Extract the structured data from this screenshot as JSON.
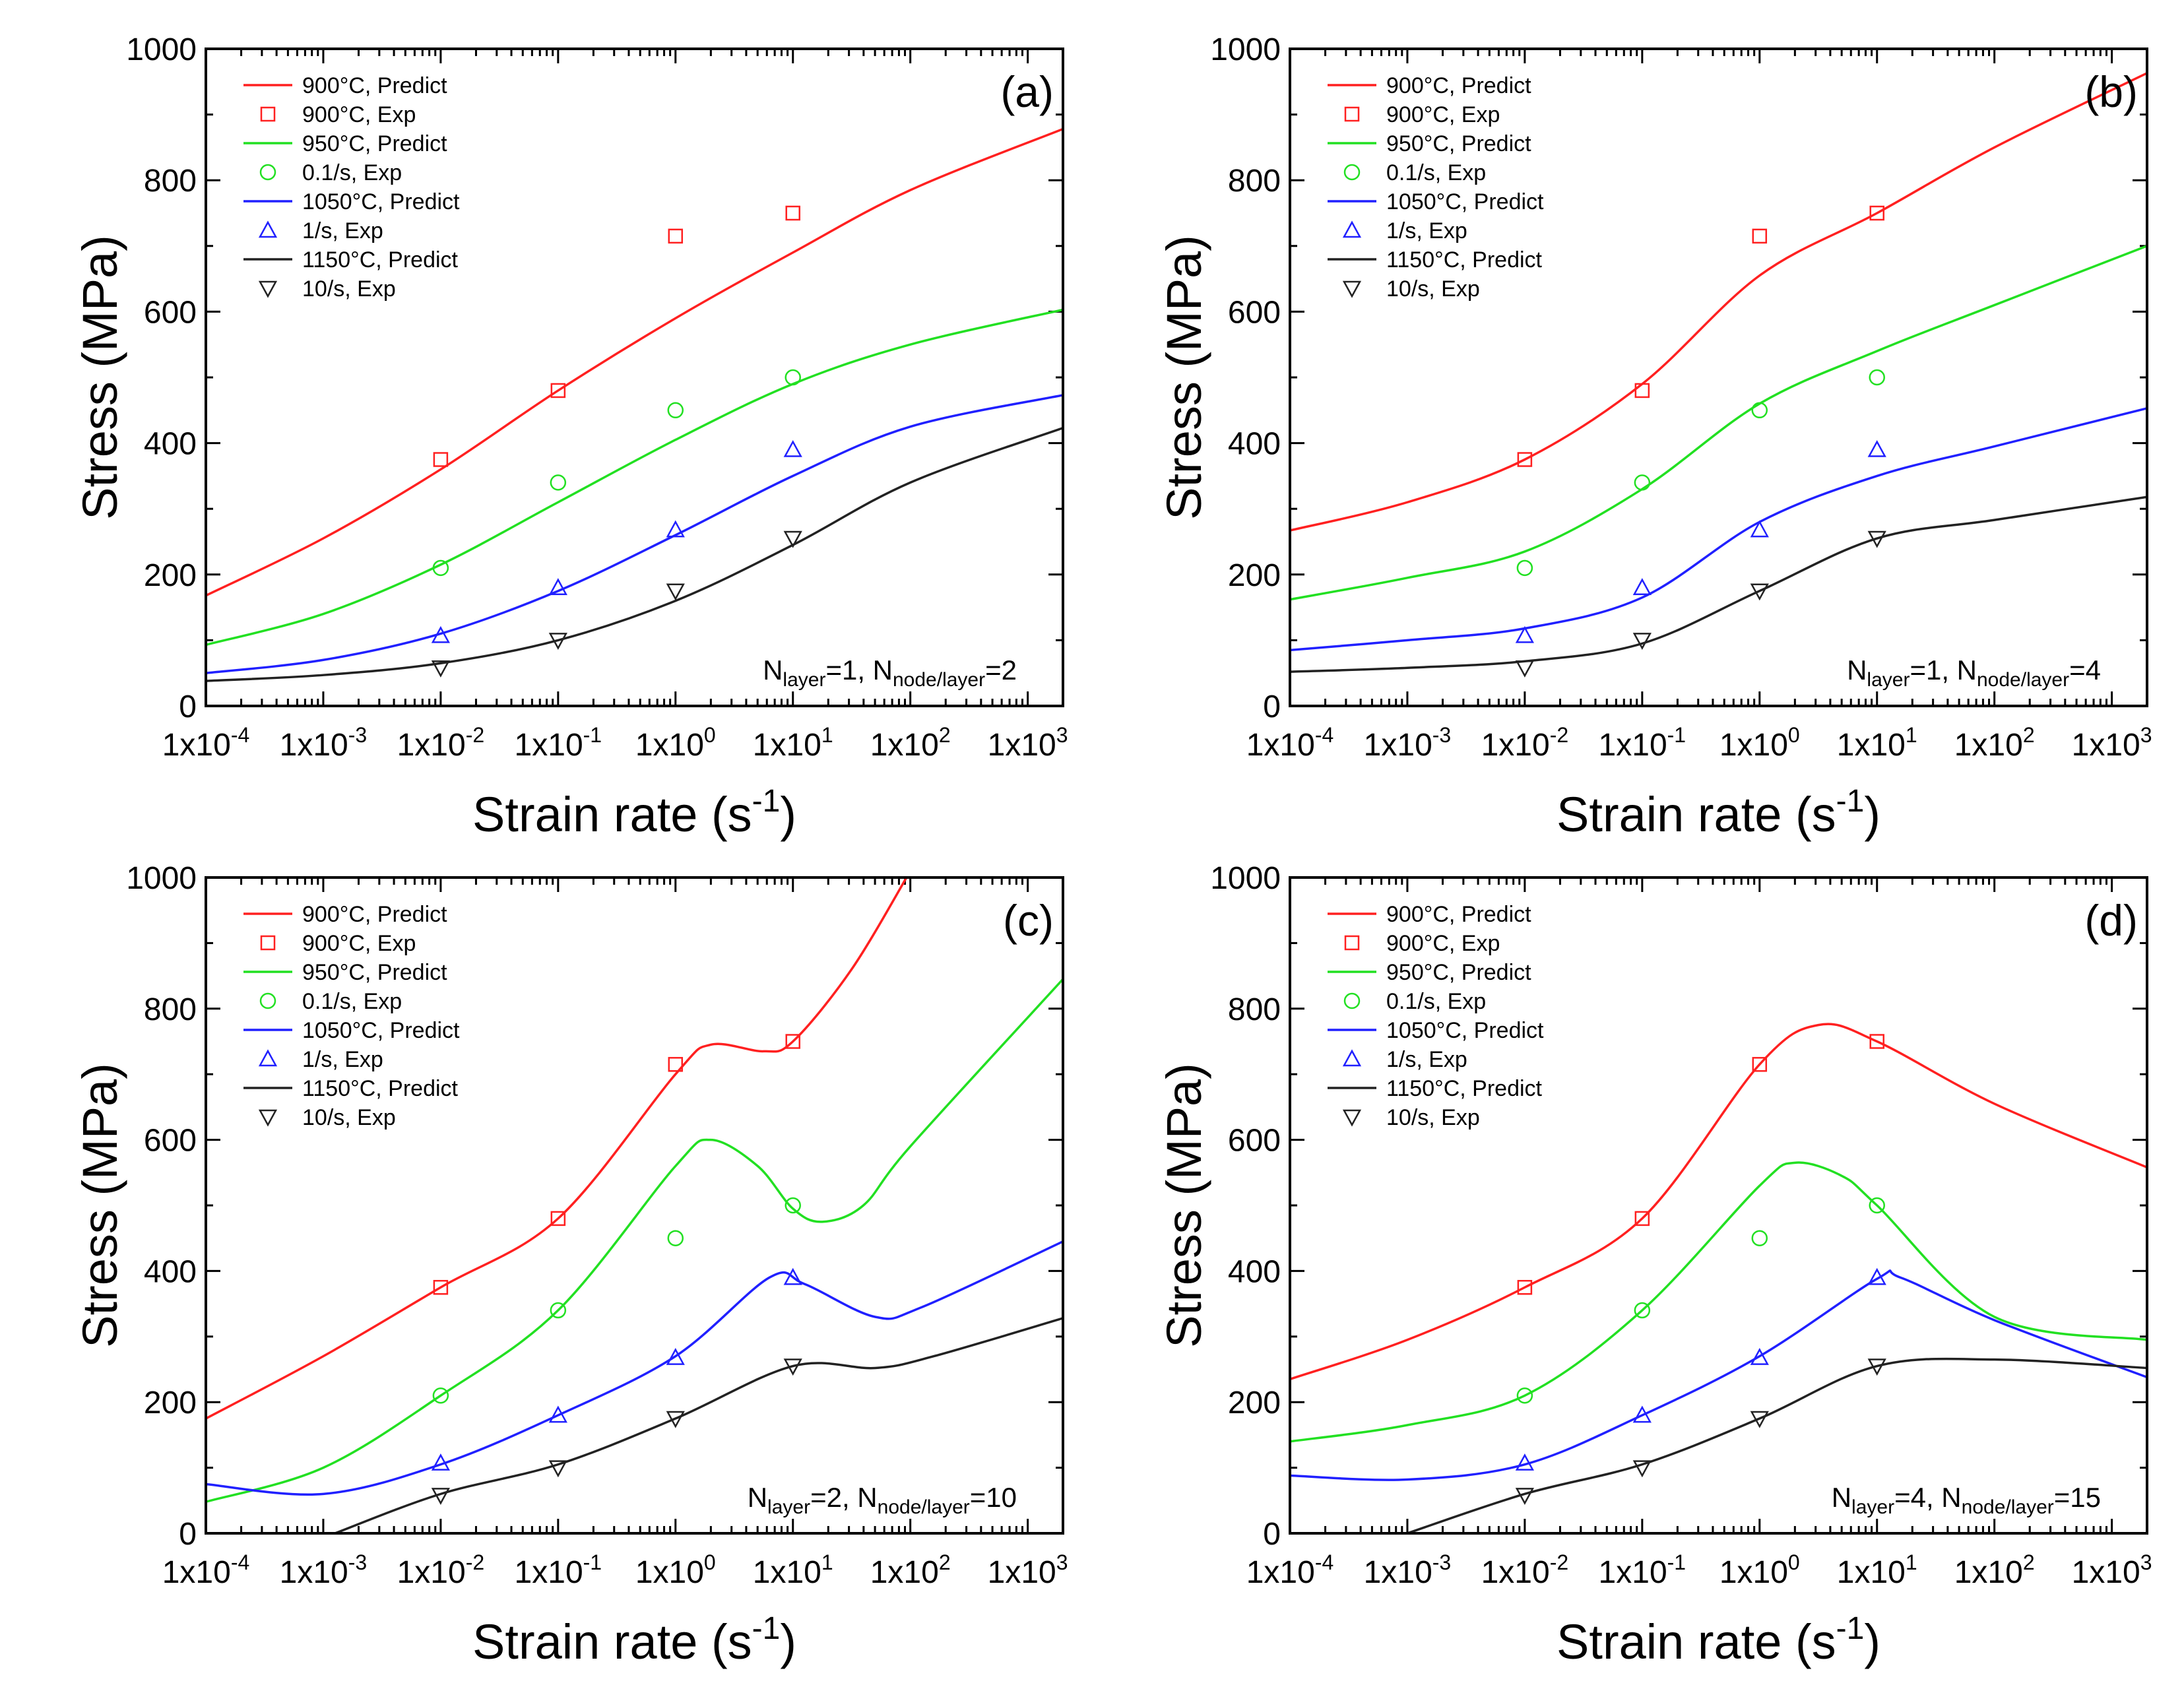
{
  "chart_data": [
    {
      "type": "line",
      "panel_label": "(a)",
      "annotation": {
        "parts": [
          [
            "N",
            ""
          ],
          [
            "layer",
            "sub"
          ],
          [
            "=1, N",
            ""
          ],
          [
            "node/layer",
            "sub"
          ],
          [
            "=2",
            ""
          ]
        ]
      },
      "xlabel": {
        "text": "Strain rate (s",
        "sup": "-1",
        "close": ")"
      },
      "ylabel": "Stress (MPa)",
      "xscale": "log",
      "xlim_log10": [
        -4,
        3.3
      ],
      "ylim": [
        0,
        1000
      ],
      "xticks": [
        {
          "base": "1x10",
          "exp": "-4"
        },
        {
          "base": "1x10",
          "exp": "-3"
        },
        {
          "base": "1x10",
          "exp": "-2"
        },
        {
          "base": "1x10",
          "exp": "-1"
        },
        {
          "base": "1x10",
          "exp": "0"
        },
        {
          "base": "1x10",
          "exp": "1"
        },
        {
          "base": "1x10",
          "exp": "2"
        },
        {
          "base": "1x10",
          "exp": "3"
        }
      ],
      "yticks": [
        "0",
        "200",
        "400",
        "600",
        "800",
        "1000"
      ],
      "legend_position": "top-left",
      "series_predict": [
        {
          "name": "900°C, Predict",
          "color": "#ff2020",
          "points": [
            [
              -4,
              168
            ],
            [
              -3,
              255
            ],
            [
              -2,
              360
            ],
            [
              -1,
              480
            ],
            [
              0,
              590
            ],
            [
              1,
              690
            ],
            [
              2,
              785
            ],
            [
              3.3,
              878
            ]
          ]
        },
        {
          "name": "950°C, Predict",
          "color": "#22e022",
          "points": [
            [
              -4,
              93
            ],
            [
              -3,
              140
            ],
            [
              -2,
              215
            ],
            [
              -1,
              310
            ],
            [
              0,
              405
            ],
            [
              1,
              490
            ],
            [
              2,
              550
            ],
            [
              3.3,
              603
            ]
          ]
        },
        {
          "name": "1050°C, Predict",
          "color": "#2020ff",
          "points": [
            [
              -4,
              50
            ],
            [
              -3,
              70
            ],
            [
              -2,
              110
            ],
            [
              -1,
              175
            ],
            [
              0,
              260
            ],
            [
              1,
              350
            ],
            [
              2,
              425
            ],
            [
              3.3,
              473
            ]
          ]
        },
        {
          "name": "1150°C, Predict",
          "color": "#222222",
          "points": [
            [
              -4,
              38
            ],
            [
              -3,
              47
            ],
            [
              -2,
              65
            ],
            [
              -1,
              100
            ],
            [
              0,
              160
            ],
            [
              1,
              245
            ],
            [
              2,
              340
            ],
            [
              3.3,
              423
            ]
          ]
        }
      ]
    },
    {
      "type": "line",
      "panel_label": "(b)",
      "annotation": {
        "parts": [
          [
            "N",
            ""
          ],
          [
            "layer",
            "sub"
          ],
          [
            "=1, N",
            ""
          ],
          [
            "node/layer",
            "sub"
          ],
          [
            "=4",
            ""
          ]
        ]
      },
      "xlabel": {
        "text": "Strain rate (s",
        "sup": "-1",
        "close": ")"
      },
      "ylabel": "Stress (MPa)",
      "xscale": "log",
      "xlim_log10": [
        -4,
        3.3
      ],
      "ylim": [
        0,
        1000
      ],
      "xticks": [
        {
          "base": "1x10",
          "exp": "-4"
        },
        {
          "base": "1x10",
          "exp": "-3"
        },
        {
          "base": "1x10",
          "exp": "-2"
        },
        {
          "base": "1x10",
          "exp": "-1"
        },
        {
          "base": "1x10",
          "exp": "0"
        },
        {
          "base": "1x10",
          "exp": "1"
        },
        {
          "base": "1x10",
          "exp": "2"
        },
        {
          "base": "1x10",
          "exp": "3"
        }
      ],
      "yticks": [
        "0",
        "200",
        "400",
        "600",
        "800",
        "1000"
      ],
      "legend_position": "top-left",
      "series_predict": [
        {
          "name": "900°C, Predict",
          "color": "#ff2020",
          "points": [
            [
              -4,
              267
            ],
            [
              -3,
              310
            ],
            [
              -2,
              375
            ],
            [
              -1,
              490
            ],
            [
              0,
              655
            ],
            [
              1,
              750
            ],
            [
              2,
              850
            ],
            [
              3.3,
              963
            ]
          ]
        },
        {
          "name": "950°C, Predict",
          "color": "#22e022",
          "points": [
            [
              -4,
              162
            ],
            [
              -3,
              195
            ],
            [
              -2,
              235
            ],
            [
              -1,
              330
            ],
            [
              0,
              460
            ],
            [
              1,
              540
            ],
            [
              2,
              610
            ],
            [
              3.3,
              700
            ]
          ]
        },
        {
          "name": "1050°C, Predict",
          "color": "#2020ff",
          "points": [
            [
              -4,
              85
            ],
            [
              -3,
              100
            ],
            [
              -2,
              118
            ],
            [
              -1,
              165
            ],
            [
              0,
              280
            ],
            [
              1,
              350
            ],
            [
              2,
              395
            ],
            [
              3.3,
              453
            ]
          ]
        },
        {
          "name": "1150°C, Predict",
          "color": "#222222",
          "points": [
            [
              -4,
              52
            ],
            [
              -3,
              58
            ],
            [
              -2,
              68
            ],
            [
              -1,
              95
            ],
            [
              0,
              175
            ],
            [
              1,
              255
            ],
            [
              2,
              283
            ],
            [
              3.3,
              318
            ]
          ]
        }
      ]
    },
    {
      "type": "line",
      "panel_label": "(c)",
      "annotation": {
        "parts": [
          [
            "N",
            ""
          ],
          [
            "layer",
            "sub"
          ],
          [
            "=2, N",
            ""
          ],
          [
            "node/layer",
            "sub"
          ],
          [
            "=10",
            ""
          ]
        ]
      },
      "xlabel": {
        "text": "Strain rate (s",
        "sup": "-1",
        "close": ")"
      },
      "ylabel": "Stress (MPa)",
      "xscale": "log",
      "xlim_log10": [
        -4,
        3.3
      ],
      "ylim": [
        0,
        1000
      ],
      "xticks": [
        {
          "base": "1x10",
          "exp": "-4"
        },
        {
          "base": "1x10",
          "exp": "-3"
        },
        {
          "base": "1x10",
          "exp": "-2"
        },
        {
          "base": "1x10",
          "exp": "-1"
        },
        {
          "base": "1x10",
          "exp": "0"
        },
        {
          "base": "1x10",
          "exp": "1"
        },
        {
          "base": "1x10",
          "exp": "2"
        },
        {
          "base": "1x10",
          "exp": "3"
        }
      ],
      "yticks": [
        "0",
        "200",
        "400",
        "600",
        "800",
        "1000"
      ],
      "legend_position": "top-left",
      "series_predict": [
        {
          "name": "900°C, Predict",
          "color": "#ff2020",
          "points": [
            [
              -4,
              175
            ],
            [
              -3,
              270
            ],
            [
              -2,
              375
            ],
            [
              -1,
              480
            ],
            [
              0,
              700
            ],
            [
              0.3,
              745
            ],
            [
              0.75,
              735
            ],
            [
              1,
              750
            ],
            [
              1.5,
              860
            ],
            [
              2,
              1010
            ]
          ]
        },
        {
          "name": "950°C, Predict",
          "color": "#22e022",
          "points": [
            [
              -4,
              48
            ],
            [
              -3,
              100
            ],
            [
              -2,
              210
            ],
            [
              -1,
              340
            ],
            [
              0,
              560
            ],
            [
              0.3,
              600
            ],
            [
              0.7,
              560
            ],
            [
              1,
              495
            ],
            [
              1.25,
              475
            ],
            [
              1.6,
              500
            ],
            [
              2,
              590
            ],
            [
              3.3,
              845
            ]
          ]
        },
        {
          "name": "1050°C, Predict",
          "color": "#2020ff",
          "points": [
            [
              -4,
              75
            ],
            [
              -3,
              60
            ],
            [
              -2,
              105
            ],
            [
              -1,
              180
            ],
            [
              0,
              270
            ],
            [
              0.8,
              390
            ],
            [
              1.1,
              380
            ],
            [
              1.7,
              330
            ],
            [
              2.1,
              345
            ],
            [
              3.3,
              445
            ]
          ]
        },
        {
          "name": "1150°C, Predict",
          "color": "#222222",
          "points": [
            [
              -2.9,
              0
            ],
            [
              -2,
              60
            ],
            [
              -1,
              105
            ],
            [
              0,
              175
            ],
            [
              1,
              255
            ],
            [
              1.7,
              252
            ],
            [
              2.2,
              270
            ],
            [
              3.3,
              328
            ]
          ]
        }
      ]
    },
    {
      "type": "line",
      "panel_label": "(d)",
      "annotation": {
        "parts": [
          [
            "N",
            ""
          ],
          [
            "layer",
            "sub"
          ],
          [
            "=4, N",
            ""
          ],
          [
            "node/layer",
            "sub"
          ],
          [
            "=15",
            ""
          ]
        ]
      },
      "xlabel": {
        "text": "Strain rate (s",
        "sup": "-1",
        "close": ")"
      },
      "ylabel": "Stress (MPa)",
      "xscale": "log",
      "xlim_log10": [
        -4,
        3.3
      ],
      "ylim": [
        0,
        1000
      ],
      "xticks": [
        {
          "base": "1x10",
          "exp": "-4"
        },
        {
          "base": "1x10",
          "exp": "-3"
        },
        {
          "base": "1x10",
          "exp": "-2"
        },
        {
          "base": "1x10",
          "exp": "-1"
        },
        {
          "base": "1x10",
          "exp": "0"
        },
        {
          "base": "1x10",
          "exp": "1"
        },
        {
          "base": "1x10",
          "exp": "2"
        },
        {
          "base": "1x10",
          "exp": "3"
        }
      ],
      "yticks": [
        "0",
        "200",
        "400",
        "600",
        "800",
        "1000"
      ],
      "legend_position": "top-left",
      "series_predict": [
        {
          "name": "900°C, Predict",
          "color": "#ff2020",
          "points": [
            [
              -4,
              235
            ],
            [
              -3,
              295
            ],
            [
              -2,
              375
            ],
            [
              -1,
              480
            ],
            [
              0,
              715
            ],
            [
              0.5,
              775
            ],
            [
              1,
              750
            ],
            [
              2,
              655
            ],
            [
              3.3,
              558
            ]
          ]
        },
        {
          "name": "950°C, Predict",
          "color": "#22e022",
          "points": [
            [
              -4,
              140
            ],
            [
              -3,
              165
            ],
            [
              -2,
              210
            ],
            [
              -1,
              340
            ],
            [
              0,
              530
            ],
            [
              0.3,
              565
            ],
            [
              0.7,
              545
            ],
            [
              1,
              500
            ],
            [
              2,
              330
            ],
            [
              3.3,
              295
            ]
          ]
        },
        {
          "name": "1050°C, Predict",
          "color": "#2020ff",
          "points": [
            [
              -4,
              88
            ],
            [
              -3,
              82
            ],
            [
              -2,
              105
            ],
            [
              -1,
              180
            ],
            [
              0,
              270
            ],
            [
              1,
              388
            ],
            [
              1.2,
              390
            ],
            [
              2,
              325
            ],
            [
              3.3,
              238
            ]
          ]
        },
        {
          "name": "1150°C, Predict",
          "color": "#222222",
          "points": [
            [
              -3.0,
              0
            ],
            [
              -2,
              60
            ],
            [
              -1,
              105
            ],
            [
              0,
              175
            ],
            [
              1,
              255
            ],
            [
              2,
              265
            ],
            [
              3.3,
              252
            ]
          ]
        }
      ]
    }
  ],
  "experimental": [
    {
      "name": "900°C, Exp",
      "marker": "square",
      "color": "#ff2020",
      "x_log10": [
        -2,
        -1,
        0,
        1
      ],
      "y": [
        375,
        480,
        715,
        750
      ]
    },
    {
      "name": "0.1/s, Exp",
      "marker": "circle",
      "color": "#22e022",
      "x_log10": [
        -2,
        -1,
        0,
        1
      ],
      "y": [
        210,
        340,
        450,
        500
      ]
    },
    {
      "name": "1/s, Exp",
      "marker": "triangle-up",
      "color": "#2020ff",
      "x_log10": [
        -2,
        -1,
        0,
        1
      ],
      "y": [
        107,
        180,
        268,
        390
      ]
    },
    {
      "name": "10/s, Exp",
      "marker": "triangle-down",
      "color": "#222222",
      "x_log10": [
        -2,
        -1,
        0,
        1
      ],
      "y": [
        58,
        100,
        175,
        255
      ]
    }
  ]
}
